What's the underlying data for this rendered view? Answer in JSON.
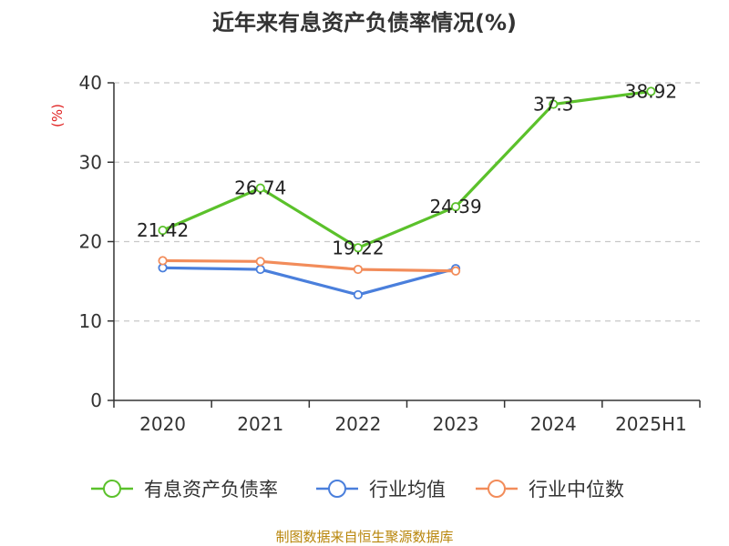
{
  "chart_data": {
    "type": "line",
    "title": "近年来有息资产负债率情况(%)",
    "ylabel": "(%)",
    "xlabel": "",
    "categories": [
      "2020",
      "2021",
      "2022",
      "2023",
      "2024",
      "2025H1"
    ],
    "ylim": [
      0,
      40
    ],
    "yticks": [
      0,
      10,
      20,
      30,
      40
    ],
    "grid": true,
    "legend_position": "bottom",
    "series": [
      {
        "name": "有息资产负债率",
        "color": "#5bc12b",
        "values": [
          21.42,
          26.74,
          19.22,
          24.39,
          37.3,
          38.92
        ],
        "labels": [
          "21.42",
          "26.74",
          "19.22",
          "24.39",
          "37.3",
          "38.92"
        ],
        "show_labels": true
      },
      {
        "name": "行业均值",
        "color": "#4a7fdc",
        "values": [
          16.7,
          16.5,
          13.3,
          16.6,
          null,
          null
        ],
        "show_labels": false
      },
      {
        "name": "行业中位数",
        "color": "#f28c5a",
        "values": [
          17.6,
          17.5,
          16.5,
          16.3,
          null,
          null
        ],
        "show_labels": false
      }
    ]
  },
  "footer": {
    "source": "制图数据来自恒生聚源数据库"
  }
}
